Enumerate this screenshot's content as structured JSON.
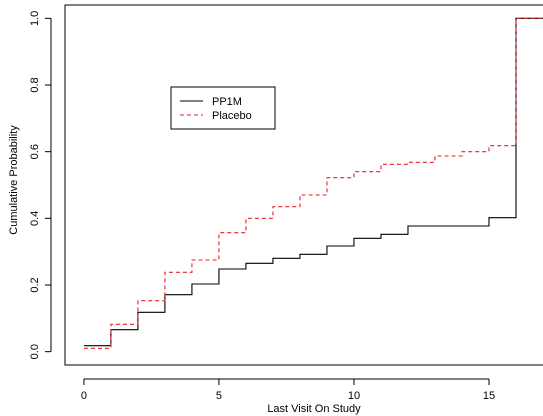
{
  "chart_data": {
    "type": "line",
    "step": true,
    "xlabel": "Last Visit On Study",
    "ylabel": "Cumulative Probability",
    "xlim": [
      -0.7,
      17
    ],
    "ylim": [
      -0.04,
      1.04
    ],
    "x_ticks": [
      0,
      5,
      10,
      15
    ],
    "y_ticks": [
      0.0,
      0.2,
      0.4,
      0.6,
      0.8,
      1.0
    ],
    "x_tick_labels": [
      "0",
      "5",
      "10",
      "15"
    ],
    "y_tick_labels": [
      "0.0",
      "0.2",
      "0.4",
      "0.6",
      "0.8",
      "1.0"
    ],
    "grid": false,
    "legend_position": "upper-left",
    "series": [
      {
        "name": "PP1M",
        "color": "#000000",
        "dash": "solid",
        "x": [
          0,
          1,
          2,
          3,
          4,
          5,
          6,
          7,
          8,
          9,
          10,
          11,
          12,
          13,
          14,
          15,
          16
        ],
        "y": [
          0.018,
          0.066,
          0.118,
          0.171,
          0.203,
          0.248,
          0.265,
          0.28,
          0.292,
          0.317,
          0.34,
          0.352,
          0.377,
          0.377,
          0.377,
          0.402,
          1.0
        ]
      },
      {
        "name": "Placebo",
        "color": "#e8202a",
        "dash": "dashed",
        "x": [
          0,
          1,
          2,
          3,
          4,
          5,
          6,
          7,
          8,
          9,
          10,
          11,
          12,
          13,
          14,
          15,
          16
        ],
        "y": [
          0.01,
          0.082,
          0.153,
          0.238,
          0.275,
          0.357,
          0.4,
          0.435,
          0.47,
          0.522,
          0.54,
          0.562,
          0.568,
          0.587,
          0.6,
          0.618,
          1.0
        ]
      }
    ]
  }
}
